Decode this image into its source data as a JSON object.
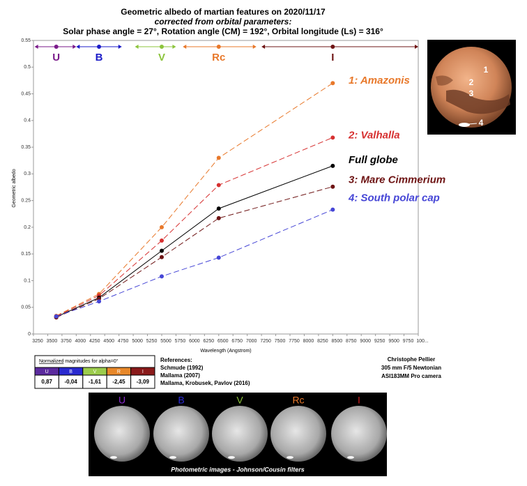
{
  "chart_data": {
    "type": "line",
    "title": "Geometric albedo of martian features on 2020/11/17",
    "subtitle": "corrected from orbital parameters:",
    "subtitle2": "Solar phase angle = 27°, Rotation angle (CM) = 192°, Orbital longitude (Ls) = 316°",
    "x_label": "Wavelength (Angstrom)",
    "y_label": "Geometric albedo",
    "x": [
      3650,
      4400,
      5500,
      6500,
      8500
    ],
    "series": [
      {
        "name": "1: Amazonis",
        "color": "#e8782a",
        "line_style": "dashed",
        "values": [
          0.034,
          0.075,
          0.2,
          0.33,
          0.47
        ]
      },
      {
        "name": "2: Valhalla",
        "color": "#d63030",
        "line_style": "dashed",
        "values": [
          0.033,
          0.072,
          0.175,
          0.279,
          0.368
        ]
      },
      {
        "name": "Full globe",
        "color": "#000000",
        "line_style": "solid",
        "values": [
          0.032,
          0.068,
          0.156,
          0.235,
          0.315
        ]
      },
      {
        "name": "3: Mare Cimmerium",
        "color": "#6e1414",
        "line_style": "dashed",
        "values": [
          0.031,
          0.066,
          0.144,
          0.217,
          0.276
        ]
      },
      {
        "name": "4: South polar cap",
        "color": "#4646d6",
        "line_style": "dashed",
        "values": [
          0.033,
          0.061,
          0.108,
          0.143,
          0.233
        ]
      }
    ],
    "bands": [
      {
        "label": "U",
        "color": "#7a1a8a",
        "range": [
          3270,
          4000
        ]
      },
      {
        "label": "B",
        "color": "#1c1cc8",
        "range": [
          4000,
          4800
        ]
      },
      {
        "label": "V",
        "color": "#8cc43c",
        "range": [
          5030,
          5750
        ]
      },
      {
        "label": "Rc",
        "color": "#e8782a",
        "range": [
          5870,
          7160
        ]
      },
      {
        "label": "I",
        "color": "#6e1414",
        "range": [
          7250,
          10000
        ]
      }
    ],
    "xlim": [
      3250,
      10000
    ],
    "xticks": [
      3250,
      3500,
      3750,
      4000,
      4250,
      4500,
      4750,
      5000,
      5250,
      5500,
      5750,
      6000,
      6250,
      6500,
      6750,
      7000,
      7250,
      7500,
      7750,
      8000,
      8250,
      8500,
      8750,
      9000,
      9250,
      9500,
      9750,
      {
        "value": 10000,
        "label": "100..."
      }
    ],
    "ylim": [
      0,
      0.55
    ],
    "yticks": [
      0,
      0.05,
      0.1,
      0.15,
      0.2,
      0.25,
      0.3,
      0.35,
      0.4,
      0.45,
      0.5,
      0.55
    ],
    "grid": false
  },
  "mars_image": {
    "labels": [
      "1",
      "2",
      "3",
      "4"
    ]
  },
  "magnitudes_table": {
    "title_underlined": "Normalized",
    "title_rest": " magnitudes for alpha=0°",
    "bands": [
      "U",
      "B",
      "V",
      "R",
      "I"
    ],
    "band_colors": [
      "#5b2a9e",
      "#2a2ad0",
      "#9ccc4c",
      "#e8882a",
      "#8a1a1a"
    ],
    "values": [
      "0,87",
      "-0,04",
      "-1,61",
      "-2,45",
      "-3,09"
    ]
  },
  "references": {
    "title": "References:",
    "items": [
      "Schmude (1992)",
      "Mallama (2007)",
      "Mallama, Krobusek, Pavlov (2016)"
    ]
  },
  "credits": [
    "Christophe Pellier",
    "305 mm F/5 Newtonian",
    "ASI183MM Pro camera"
  ],
  "photometric_images": {
    "labels": [
      "U",
      "B",
      "V",
      "Rc",
      "I"
    ],
    "label_colors": [
      "#8a2ad0",
      "#2a2ad8",
      "#8cc43c",
      "#e8782a",
      "#d02020"
    ],
    "caption": "Photometric images - Johnson/Cousin filters"
  }
}
